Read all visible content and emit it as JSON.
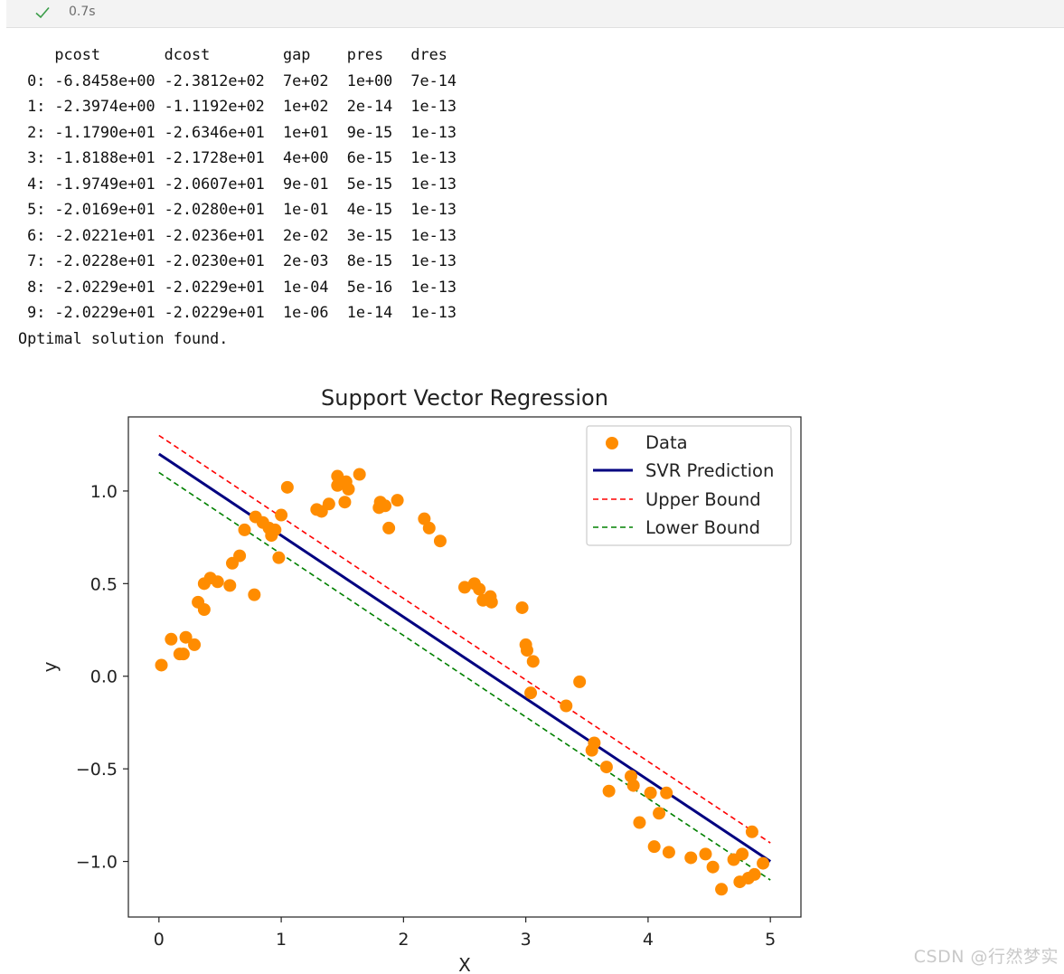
{
  "cell": {
    "status": "success",
    "exec_time": "0.7s"
  },
  "solver_output": {
    "header": {
      "pcost": "pcost",
      "dcost": "dcost",
      "gap": "gap",
      "pres": "pres",
      "dres": "dres"
    },
    "rows": [
      {
        "iter": "0:",
        "pcost": "-6.8458e+00",
        "dcost": "-2.3812e+02",
        "gap": "7e+02",
        "pres": "1e+00",
        "dres": "7e-14"
      },
      {
        "iter": "1:",
        "pcost": "-2.3974e+00",
        "dcost": "-1.1192e+02",
        "gap": "1e+02",
        "pres": "2e-14",
        "dres": "1e-13"
      },
      {
        "iter": "2:",
        "pcost": "-1.1790e+01",
        "dcost": "-2.6346e+01",
        "gap": "1e+01",
        "pres": "9e-15",
        "dres": "1e-13"
      },
      {
        "iter": "3:",
        "pcost": "-1.8188e+01",
        "dcost": "-2.1728e+01",
        "gap": "4e+00",
        "pres": "6e-15",
        "dres": "1e-13"
      },
      {
        "iter": "4:",
        "pcost": "-1.9749e+01",
        "dcost": "-2.0607e+01",
        "gap": "9e-01",
        "pres": "5e-15",
        "dres": "1e-13"
      },
      {
        "iter": "5:",
        "pcost": "-2.0169e+01",
        "dcost": "-2.0280e+01",
        "gap": "1e-01",
        "pres": "4e-15",
        "dres": "1e-13"
      },
      {
        "iter": "6:",
        "pcost": "-2.0221e+01",
        "dcost": "-2.0236e+01",
        "gap": "2e-02",
        "pres": "3e-15",
        "dres": "1e-13"
      },
      {
        "iter": "7:",
        "pcost": "-2.0228e+01",
        "dcost": "-2.0230e+01",
        "gap": "2e-03",
        "pres": "8e-15",
        "dres": "1e-13"
      },
      {
        "iter": "8:",
        "pcost": "-2.0229e+01",
        "dcost": "-2.0229e+01",
        "gap": "1e-04",
        "pres": "5e-16",
        "dres": "1e-13"
      },
      {
        "iter": "9:",
        "pcost": "-2.0229e+01",
        "dcost": "-2.0229e+01",
        "gap": "1e-06",
        "pres": "1e-14",
        "dres": "1e-13"
      }
    ],
    "footer": "Optimal solution found."
  },
  "chart_data": {
    "type": "scatter",
    "title": "Support Vector Regression",
    "xlabel": "X",
    "ylabel": "y",
    "xlim": [
      -0.25,
      5.25
    ],
    "ylim": [
      -1.3,
      1.4
    ],
    "xticks": [
      0,
      1,
      2,
      3,
      4,
      5
    ],
    "xtick_labels": [
      "0",
      "1",
      "2",
      "3",
      "4",
      "5"
    ],
    "yticks": [
      1.0,
      0.5,
      0.0,
      -0.5,
      -1.0
    ],
    "ytick_labels": [
      "1.0",
      "0.5",
      "0.0",
      "−0.5",
      "−1.0"
    ],
    "legend_position": "top-right",
    "legend": [
      "Data",
      "SVR Prediction",
      "Upper Bound",
      "Lower Bound"
    ],
    "colors": {
      "data": "#ff8c00",
      "prediction": "#000080",
      "upper": "#ff0000",
      "lower": "#008000"
    },
    "series": [
      {
        "name": "Data",
        "kind": "scatter",
        "x": [
          0.02,
          0.1,
          0.17,
          0.2,
          0.22,
          0.29,
          0.32,
          0.37,
          0.37,
          0.42,
          0.48,
          0.58,
          0.6,
          0.66,
          0.7,
          0.78,
          0.79,
          0.85,
          0.9,
          0.92,
          0.95,
          0.98,
          1.0,
          1.05,
          1.29,
          1.33,
          1.39,
          1.46,
          1.46,
          1.52,
          1.53,
          1.55,
          1.64,
          1.8,
          1.81,
          1.85,
          1.88,
          1.95,
          2.17,
          2.21,
          2.3,
          2.5,
          2.58,
          2.62,
          2.65,
          2.71,
          2.72,
          2.97,
          3.0,
          3.01,
          3.04,
          3.06,
          3.33,
          3.44,
          3.54,
          3.56,
          3.66,
          3.68,
          3.86,
          3.88,
          3.93,
          4.02,
          4.05,
          4.09,
          4.15,
          4.17,
          4.35,
          4.47,
          4.53,
          4.6,
          4.7,
          4.75,
          4.77,
          4.82,
          4.85,
          4.87,
          4.94
        ],
        "y": [
          0.06,
          0.2,
          0.12,
          0.12,
          0.21,
          0.17,
          0.4,
          0.36,
          0.5,
          0.53,
          0.51,
          0.49,
          0.61,
          0.65,
          0.79,
          0.44,
          0.86,
          0.83,
          0.8,
          0.76,
          0.79,
          0.64,
          0.87,
          1.02,
          0.9,
          0.89,
          0.93,
          1.08,
          1.03,
          0.94,
          1.05,
          1.01,
          1.09,
          0.91,
          0.94,
          0.92,
          0.8,
          0.95,
          0.85,
          0.8,
          0.73,
          0.48,
          0.5,
          0.47,
          0.41,
          0.43,
          0.4,
          0.37,
          0.17,
          0.14,
          -0.09,
          0.08,
          -0.16,
          -0.03,
          -0.4,
          -0.36,
          -0.49,
          -0.62,
          -0.54,
          -0.59,
          -0.79,
          -0.63,
          -0.92,
          -0.74,
          -0.63,
          -0.95,
          -0.98,
          -0.96,
          -1.03,
          -1.15,
          -0.99,
          -1.11,
          -0.96,
          -1.09,
          -0.84,
          -1.07,
          -1.01
        ]
      },
      {
        "name": "SVR Prediction",
        "kind": "line",
        "style": "solid",
        "x": [
          0,
          5
        ],
        "y": [
          1.2,
          -1.0
        ]
      },
      {
        "name": "Upper Bound",
        "kind": "line",
        "style": "dashed",
        "x": [
          0,
          5
        ],
        "y": [
          1.3,
          -0.9
        ]
      },
      {
        "name": "Lower Bound",
        "kind": "line",
        "style": "dashed",
        "x": [
          0,
          5
        ],
        "y": [
          1.1,
          -1.1
        ]
      }
    ]
  },
  "watermark": "CSDN @行然梦实"
}
